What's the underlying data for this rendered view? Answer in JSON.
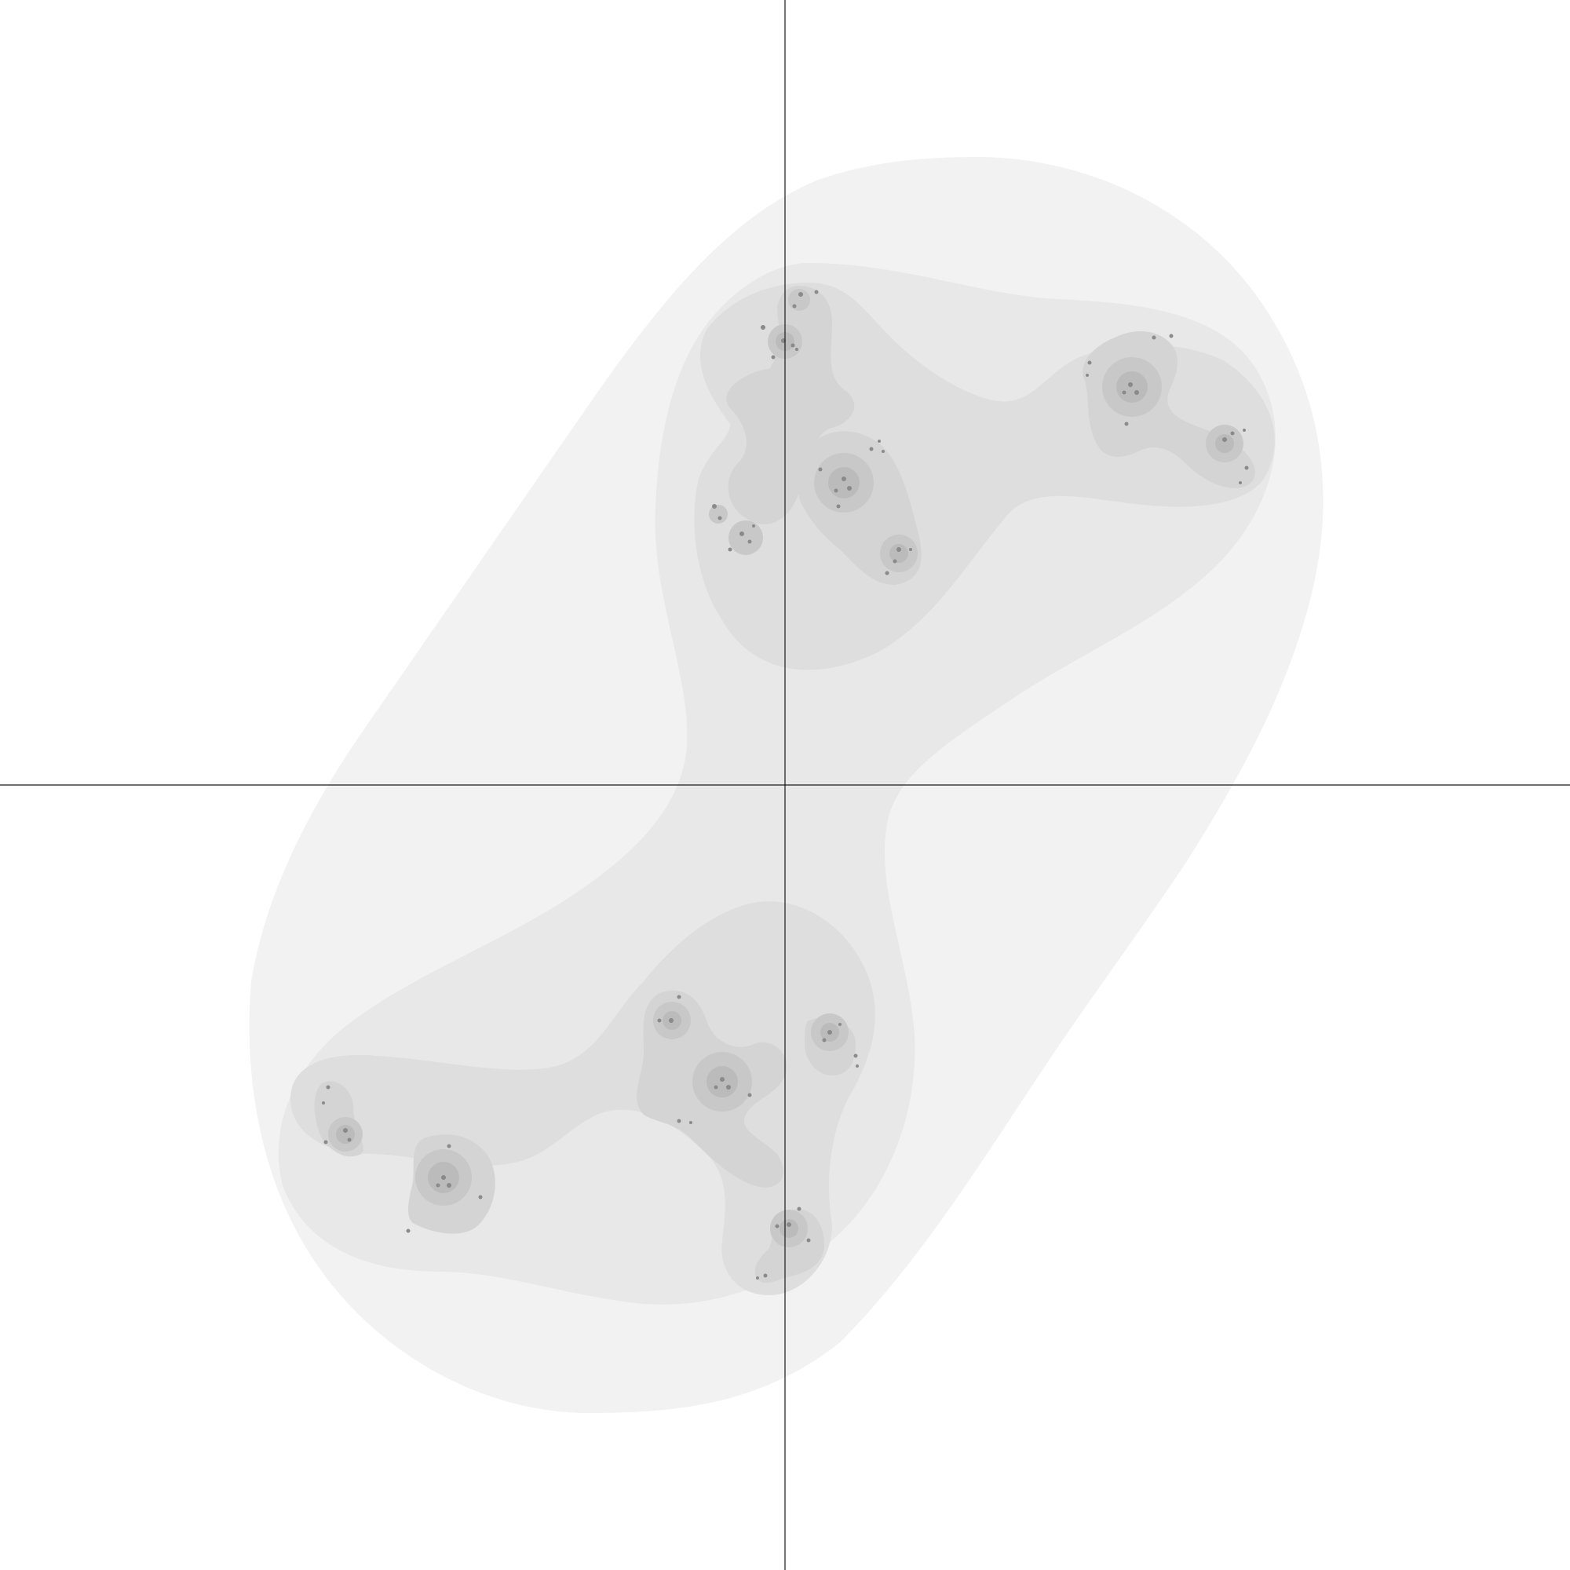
{
  "figure": {
    "background_color": "#ffffff",
    "axis_color": "#1a1a1a",
    "level_colors": [
      "#f2f2f2",
      "#e8e8e8",
      "#dedede",
      "#d4d4d4",
      "#c8c8c8",
      "#bbbbbb",
      "#a8a8a8",
      "#8a8a8a",
      "#555555"
    ],
    "axes_through_origin": true,
    "shape": "escape-time level sets of a disconnected Julia set (cubic-like, dust of three-armed clusters)"
  }
}
